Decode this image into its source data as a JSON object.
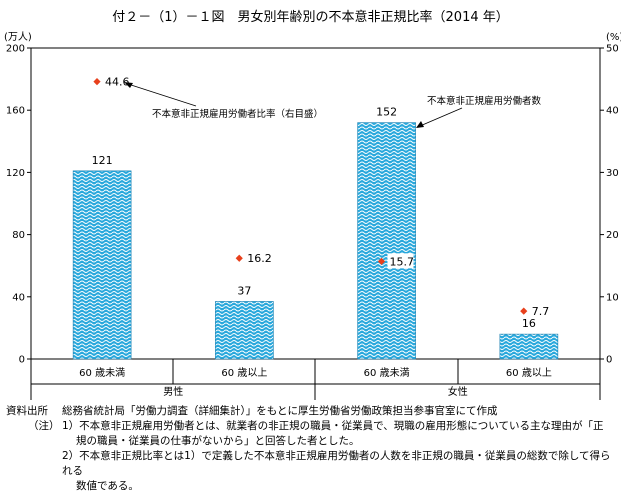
{
  "title": "付２－（1）－１図　男女別年齢別の不本意非正規比率（2014 年）",
  "chart_data": {
    "type": "bar",
    "left_unit": "(万人)",
    "right_unit": "(%)",
    "left_ticks": [
      "0",
      "40",
      "80",
      "120",
      "160",
      "200"
    ],
    "right_ticks": [
      "0",
      "10",
      "20",
      "30",
      "40",
      "50"
    ],
    "ylim_left": [
      0,
      200
    ],
    "ylim_right": [
      0,
      50
    ],
    "categories": [
      "60 歳未満",
      "60 歳以上",
      "60 歳未満",
      "60 歳以上"
    ],
    "groups": [
      "男性",
      "女性"
    ],
    "series": [
      {
        "name": "不本意非正規雇用労働者数",
        "axis": "left",
        "values": [
          121,
          37,
          152,
          16
        ]
      },
      {
        "name": "不本意非正規雇用労働者比率（右目盛）",
        "axis": "right",
        "values": [
          44.6,
          16.2,
          15.7,
          7.7
        ]
      }
    ],
    "data_labels": {
      "bars": [
        "121",
        "37",
        "152",
        "16"
      ],
      "points": [
        "44.6",
        "16.2",
        "15.7",
        "7.7"
      ]
    },
    "colors": {
      "bar": "#29a8dc",
      "point": "#e8401c"
    }
  },
  "notes": {
    "source_label": "資料出所",
    "source_text": "総務省統計局「労働力調査（詳細集計）」をもとに厚生労働省労働政策担当参事官室にて作成",
    "note_label": "（注）",
    "note1_line1": "1）不本意非正規雇用労働者とは、就業者の非正規の職員・従業員で、現職の雇用形態についている主な理由が「正",
    "note1_line2": "規の職員・従業員の仕事がないから」と回答した者とした。",
    "note2_line1": "2）不本意非正規比率とは1）で定義した不本意非正規雇用労働者の人数を非正規の職員・従業員の総数で除して得られる",
    "note2_line2": "数値である。"
  }
}
